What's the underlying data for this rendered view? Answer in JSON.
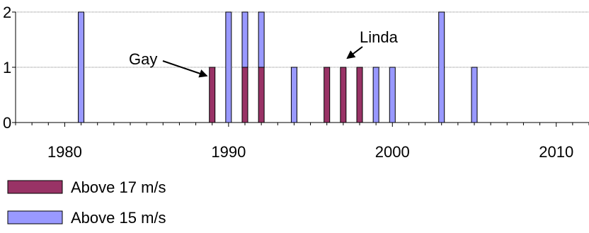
{
  "chart_data": {
    "type": "bar",
    "stacked": true,
    "x_ticks": [
      1980,
      1990,
      2000,
      2010
    ],
    "y_ticks": [
      0,
      1,
      2
    ],
    "xlim": [
      1977,
      2012
    ],
    "ylim": [
      0,
      2
    ],
    "grid": "horizontal dotted",
    "legend_position": "bottom-left",
    "series": [
      {
        "name": "Above 17 m/s",
        "color": "#993366",
        "points": [
          {
            "x": 1989,
            "y": 1
          },
          {
            "x": 1991,
            "y": 1
          },
          {
            "x": 1992,
            "y": 1
          },
          {
            "x": 1996,
            "y": 1
          },
          {
            "x": 1997,
            "y": 1
          },
          {
            "x": 1998,
            "y": 1
          }
        ]
      },
      {
        "name": "Above 15 m/s",
        "color": "#9999ff",
        "points": [
          {
            "x": 1981,
            "y": 2
          },
          {
            "x": 1990,
            "y": 2
          },
          {
            "x": 1991,
            "y": 1
          },
          {
            "x": 1992,
            "y": 1
          },
          {
            "x": 1994,
            "y": 1
          },
          {
            "x": 1999,
            "y": 1
          },
          {
            "x": 2000,
            "y": 1
          },
          {
            "x": 2003,
            "y": 2
          },
          {
            "x": 2005,
            "y": 1
          }
        ]
      }
    ],
    "annotations": [
      {
        "text": "Gay",
        "x": 1989
      },
      {
        "text": "Linda",
        "x": 1997
      }
    ]
  }
}
